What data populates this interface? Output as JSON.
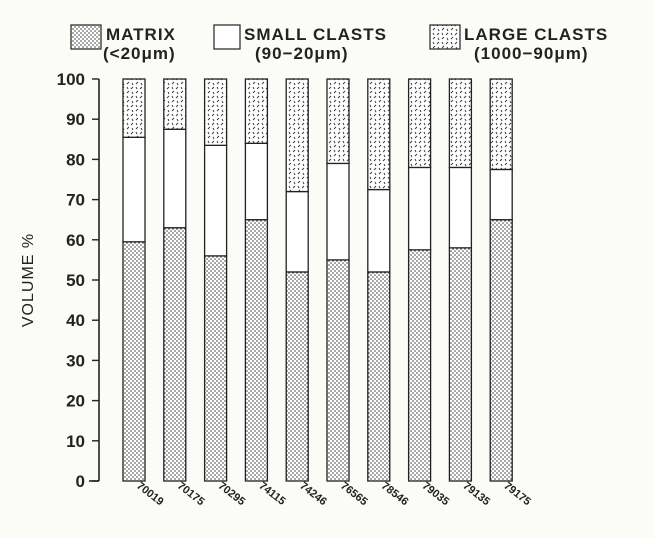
{
  "chart_data": {
    "type": "bar",
    "stacked": true,
    "ylabel": "VOLUME %",
    "ylim": [
      0,
      100
    ],
    "yticks": [
      0,
      10,
      20,
      30,
      40,
      50,
      60,
      70,
      80,
      90,
      100
    ],
    "categories": [
      "70019",
      "70175",
      "70295",
      "74115",
      "74246",
      "76565",
      "78546",
      "79035",
      "79135",
      "79175"
    ],
    "series": [
      {
        "name": "MATRIX (<20μm)",
        "label_line1": "MATRIX",
        "label_line2": "(<20μm)",
        "pattern": "dots",
        "values": [
          59.5,
          63,
          56,
          65,
          52,
          55,
          52,
          57.5,
          58,
          65
        ]
      },
      {
        "name": "SMALL CLASTS (90-20μm)",
        "label_line1": "SMALL CLASTS",
        "label_line2": "(90−20μm)",
        "pattern": "blank",
        "values": [
          26,
          24.5,
          27.5,
          19,
          20,
          24,
          20.5,
          20.5,
          20,
          12.5
        ]
      },
      {
        "name": "LARGE CLASTS (1000-90μm)",
        "label_line1": "LARGE CLASTS",
        "label_line2": "(1000−90μm)",
        "pattern": "dashes",
        "values": [
          14.5,
          12.5,
          16.5,
          16,
          28,
          21,
          27.5,
          22,
          22,
          22.5
        ]
      }
    ],
    "grid": false,
    "legend_position": "top"
  }
}
